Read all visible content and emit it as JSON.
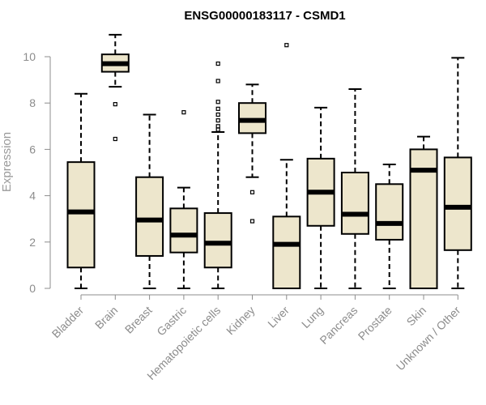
{
  "chart_data": {
    "type": "boxplot",
    "title": "ENSG00000183117 - CSMD1",
    "xlabel": "",
    "ylabel": "Expression",
    "ylim": [
      0,
      10
    ],
    "yticks": [
      0,
      2,
      4,
      6,
      8,
      10
    ],
    "grid": false,
    "colors": {
      "box_fill": "#ede6cc",
      "stroke": "#000000",
      "axis": "#8c8c8c"
    },
    "categories": [
      "Bladder",
      "Brain",
      "Breast",
      "Gastric",
      "Hematopoietic cells",
      "Kidney",
      "Liver",
      "Lung",
      "Pancreas",
      "Prostate",
      "Skin",
      "Unknown / Other"
    ],
    "boxes": [
      {
        "category": "Bladder",
        "min": 0.0,
        "q1": 0.9,
        "median": 3.3,
        "q3": 5.45,
        "max": 8.4,
        "outliers": []
      },
      {
        "category": "Brain",
        "min": 8.7,
        "q1": 9.35,
        "median": 9.7,
        "q3": 10.1,
        "max": 10.95,
        "outliers": [
          7.95,
          6.45
        ]
      },
      {
        "category": "Breast",
        "min": 0.0,
        "q1": 1.4,
        "median": 2.95,
        "q3": 4.8,
        "max": 7.5,
        "outliers": []
      },
      {
        "category": "Gastric",
        "min": 0.0,
        "q1": 1.55,
        "median": 2.3,
        "q3": 3.45,
        "max": 4.35,
        "outliers": [
          7.6
        ]
      },
      {
        "category": "Hematopoietic cells",
        "min": 0.0,
        "q1": 0.9,
        "median": 1.95,
        "q3": 3.25,
        "max": 6.75,
        "outliers": [
          9.7,
          8.95,
          8.05,
          7.75,
          7.5,
          7.25,
          7.0,
          6.85
        ]
      },
      {
        "category": "Kidney",
        "min": 4.8,
        "q1": 6.7,
        "median": 7.25,
        "q3": 8.0,
        "max": 8.8,
        "outliers": [
          4.15,
          2.9
        ]
      },
      {
        "category": "Liver",
        "min": 0.0,
        "q1": 0.0,
        "median": 1.9,
        "q3": 3.1,
        "max": 5.55,
        "outliers": [
          10.5
        ]
      },
      {
        "category": "Lung",
        "min": 0.0,
        "q1": 2.7,
        "median": 4.15,
        "q3": 5.6,
        "max": 7.8,
        "outliers": []
      },
      {
        "category": "Pancreas",
        "min": 0.0,
        "q1": 2.35,
        "median": 3.2,
        "q3": 5.0,
        "max": 8.6,
        "outliers": []
      },
      {
        "category": "Prostate",
        "min": 0.0,
        "q1": 2.1,
        "median": 2.8,
        "q3": 4.5,
        "max": 5.35,
        "outliers": []
      },
      {
        "category": "Skin",
        "min": 0.0,
        "q1": 0.0,
        "median": 5.1,
        "q3": 6.0,
        "max": 6.55,
        "outliers": []
      },
      {
        "category": "Unknown / Other",
        "min": 0.0,
        "q1": 1.65,
        "median": 3.5,
        "q3": 5.65,
        "max": 9.95,
        "outliers": []
      }
    ]
  }
}
